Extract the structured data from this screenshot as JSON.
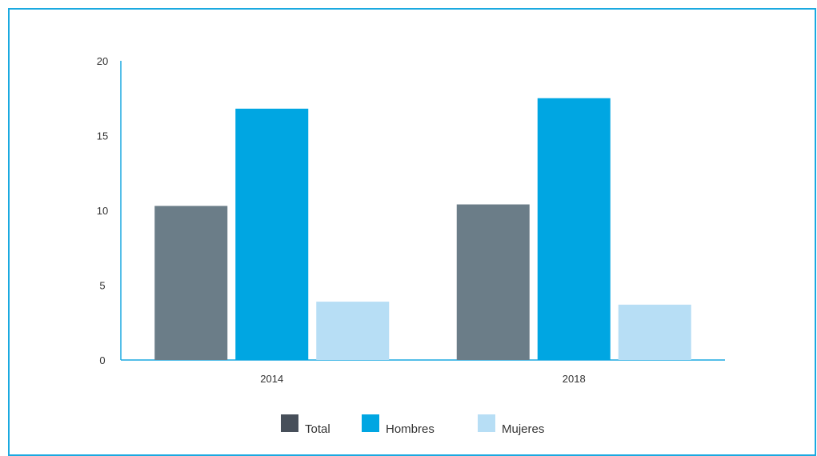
{
  "chart_data": {
    "type": "bar",
    "title": "",
    "xlabel": "",
    "ylabel": "",
    "categories": [
      "2014",
      "2018"
    ],
    "ylim": [
      0,
      20
    ],
    "yticks": [
      "0",
      "5",
      "10",
      "15",
      "20"
    ],
    "series": [
      {
        "name": "Total",
        "color": "#6b7d88",
        "values": [
          10.3,
          10.4
        ]
      },
      {
        "name": "Hombres",
        "color": "#00a6e2",
        "values": [
          16.8,
          17.5
        ]
      },
      {
        "name": "Mujeres",
        "color": "#b7def5",
        "values": [
          3.9,
          3.7
        ]
      }
    ],
    "axis_color": "#1aa9e0",
    "legend_placement": "bottom-center",
    "legend_swatch_colors": [
      "#474f5a",
      "#00a6e2",
      "#b7def5"
    ],
    "grid": false
  }
}
